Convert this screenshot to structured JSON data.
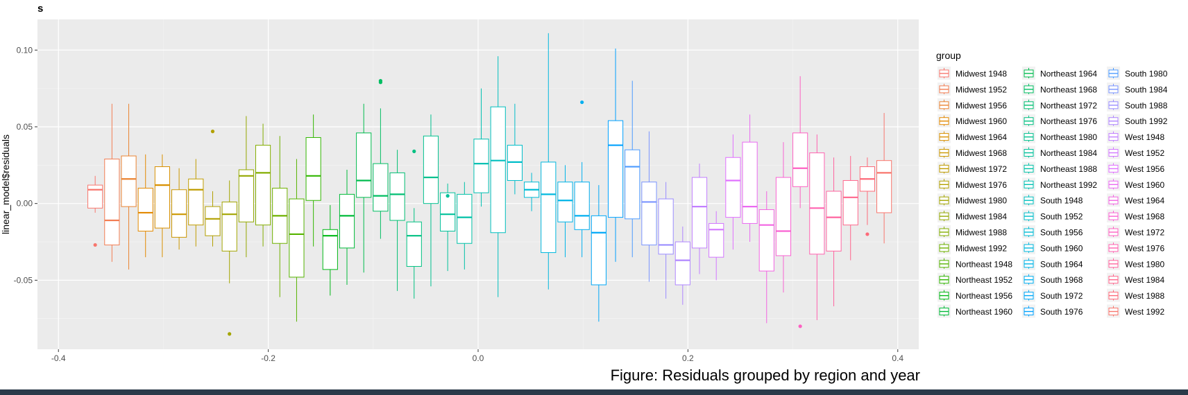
{
  "chart_data": {
    "type": "boxplot",
    "title": "s",
    "caption": "Figure: Residuals grouped by region and year",
    "xlabel": "",
    "ylabel": "linear_model$residuals",
    "xlim": [
      -0.42,
      0.42
    ],
    "ylim": [
      -0.095,
      0.12
    ],
    "x_ticks": [
      -0.4,
      -0.2,
      0.0,
      0.2,
      0.4
    ],
    "x_tick_labels": [
      "-0.4",
      "-0.2",
      "0.0",
      "0.2",
      "0.4"
    ],
    "y_ticks": [
      -0.05,
      0.0,
      0.05,
      0.1
    ],
    "y_tick_labels": [
      "-0.05",
      "0.00",
      "0.05",
      "0.10"
    ],
    "grid": true,
    "legend": {
      "title": "group",
      "placement": "right",
      "columns": 3
    },
    "groups": [
      {
        "name": "Midwest 1948",
        "color": "#F8766D",
        "x": -0.365,
        "w": 0.014,
        "q1": -0.003,
        "median": 0.009,
        "q3": 0.012,
        "lo": -0.006,
        "hi": 0.018,
        "outliers": [
          -0.027
        ]
      },
      {
        "name": "Midwest 1952",
        "color": "#F27D52",
        "x": -0.349,
        "w": 0.014,
        "q1": -0.027,
        "median": -0.011,
        "q3": 0.029,
        "lo": -0.038,
        "hi": 0.065,
        "outliers": []
      },
      {
        "name": "Midwest 1956",
        "color": "#EA8331",
        "x": -0.333,
        "w": 0.014,
        "q1": -0.002,
        "median": 0.016,
        "q3": 0.031,
        "lo": -0.043,
        "hi": 0.065,
        "outliers": []
      },
      {
        "name": "Midwest 1960",
        "color": "#E38900",
        "x": -0.317,
        "w": 0.014,
        "q1": -0.018,
        "median": -0.006,
        "q3": 0.01,
        "lo": -0.035,
        "hi": 0.032,
        "outliers": []
      },
      {
        "name": "Midwest 1964",
        "color": "#D89000",
        "x": -0.301,
        "w": 0.014,
        "q1": -0.016,
        "median": 0.012,
        "q3": 0.024,
        "lo": -0.035,
        "hi": 0.032,
        "outliers": []
      },
      {
        "name": "Midwest 1968",
        "color": "#CB9700",
        "x": -0.285,
        "w": 0.014,
        "q1": -0.022,
        "median": -0.007,
        "q3": 0.009,
        "lo": -0.03,
        "hi": 0.023,
        "outliers": []
      },
      {
        "name": "Midwest 1972",
        "color": "#BF9C00",
        "x": -0.269,
        "w": 0.014,
        "q1": -0.014,
        "median": 0.009,
        "q3": 0.016,
        "lo": -0.028,
        "hi": 0.029,
        "outliers": []
      },
      {
        "name": "Midwest 1976",
        "color": "#B2A000",
        "x": -0.253,
        "w": 0.014,
        "q1": -0.021,
        "median": -0.01,
        "q3": -0.002,
        "lo": -0.028,
        "hi": 0.008,
        "outliers": [
          0.047
        ]
      },
      {
        "name": "Midwest 1980",
        "color": "#A3A500",
        "x": -0.237,
        "w": 0.014,
        "q1": -0.031,
        "median": -0.007,
        "q3": 0.001,
        "lo": -0.052,
        "hi": 0.015,
        "outliers": [
          -0.085
        ]
      },
      {
        "name": "Midwest 1984",
        "color": "#94A800",
        "x": -0.221,
        "w": 0.014,
        "q1": -0.012,
        "median": 0.018,
        "q3": 0.022,
        "lo": -0.035,
        "hi": 0.057,
        "outliers": []
      },
      {
        "name": "Midwest 1988",
        "color": "#83AD00",
        "x": -0.205,
        "w": 0.014,
        "q1": -0.014,
        "median": 0.02,
        "q3": 0.038,
        "lo": -0.028,
        "hi": 0.052,
        "outliers": []
      },
      {
        "name": "Midwest 1992",
        "color": "#6FB000",
        "x": -0.189,
        "w": 0.014,
        "q1": -0.026,
        "median": -0.008,
        "q3": 0.01,
        "lo": -0.061,
        "hi": 0.044,
        "outliers": []
      },
      {
        "name": "Northeast 1948",
        "color": "#56B300",
        "x": -0.173,
        "w": 0.014,
        "q1": -0.048,
        "median": -0.02,
        "q3": 0.003,
        "lo": -0.077,
        "hi": 0.029,
        "outliers": []
      },
      {
        "name": "Northeast 1952",
        "color": "#31B600",
        "x": -0.157,
        "w": 0.014,
        "q1": 0.002,
        "median": 0.018,
        "q3": 0.043,
        "lo": -0.028,
        "hi": 0.058,
        "outliers": []
      },
      {
        "name": "Northeast 1956",
        "color": "#00B815",
        "x": -0.141,
        "w": 0.014,
        "q1": -0.043,
        "median": -0.021,
        "q3": -0.017,
        "lo": -0.06,
        "hi": -0.001,
        "outliers": []
      },
      {
        "name": "Northeast 1960",
        "color": "#00BA38",
        "x": -0.125,
        "w": 0.014,
        "q1": -0.029,
        "median": -0.008,
        "q3": 0.006,
        "lo": -0.053,
        "hi": 0.022,
        "outliers": []
      },
      {
        "name": "Northeast 1964",
        "color": "#00BB4E",
        "x": -0.109,
        "w": 0.014,
        "q1": 0.004,
        "median": 0.015,
        "q3": 0.046,
        "lo": -0.045,
        "hi": 0.065,
        "outliers": []
      },
      {
        "name": "Northeast 1968",
        "color": "#00BD61",
        "x": -0.093,
        "w": 0.014,
        "q1": -0.005,
        "median": 0.005,
        "q3": 0.026,
        "lo": -0.023,
        "hi": 0.062,
        "outliers": [
          0.08,
          0.079
        ]
      },
      {
        "name": "Northeast 1972",
        "color": "#00BE72",
        "x": -0.077,
        "w": 0.014,
        "q1": -0.011,
        "median": 0.006,
        "q3": 0.02,
        "lo": -0.057,
        "hi": 0.035,
        "outliers": []
      },
      {
        "name": "Northeast 1976",
        "color": "#00C081",
        "x": -0.061,
        "w": 0.014,
        "q1": -0.041,
        "median": -0.021,
        "q3": -0.012,
        "lo": -0.062,
        "hi": -0.003,
        "outliers": [
          0.034
        ]
      },
      {
        "name": "Northeast 1980",
        "color": "#00C08E",
        "x": -0.045,
        "w": 0.014,
        "q1": 0.0,
        "median": 0.017,
        "q3": 0.044,
        "lo": -0.054,
        "hi": 0.058,
        "outliers": []
      },
      {
        "name": "Northeast 1984",
        "color": "#00C19A",
        "x": -0.029,
        "w": 0.014,
        "q1": -0.018,
        "median": -0.007,
        "q3": 0.007,
        "lo": -0.044,
        "hi": 0.013,
        "outliers": [
          0.005
        ]
      },
      {
        "name": "Northeast 1988",
        "color": "#00C1A7",
        "x": -0.013,
        "w": 0.014,
        "q1": -0.026,
        "median": -0.009,
        "q3": 0.006,
        "lo": -0.043,
        "hi": 0.014,
        "outliers": []
      },
      {
        "name": "Northeast 1992",
        "color": "#00C0B2",
        "x": 0.003,
        "w": 0.014,
        "q1": 0.007,
        "median": 0.026,
        "q3": 0.042,
        "lo": -0.002,
        "hi": 0.075,
        "outliers": []
      },
      {
        "name": "South 1948",
        "color": "#00BFBE",
        "x": 0.019,
        "w": 0.014,
        "q1": -0.019,
        "median": 0.028,
        "q3": 0.063,
        "lo": -0.061,
        "hi": 0.096,
        "outliers": []
      },
      {
        "name": "South 1952",
        "color": "#00BDC9",
        "x": 0.035,
        "w": 0.014,
        "q1": 0.015,
        "median": 0.027,
        "q3": 0.038,
        "lo": 0.006,
        "hi": 0.065,
        "outliers": []
      },
      {
        "name": "South 1956",
        "color": "#00BBD4",
        "x": 0.051,
        "w": 0.014,
        "q1": 0.004,
        "median": 0.009,
        "q3": 0.014,
        "lo": -0.005,
        "hi": 0.02,
        "outliers": []
      },
      {
        "name": "South 1960",
        "color": "#00B8DE",
        "x": 0.067,
        "w": 0.014,
        "q1": -0.032,
        "median": 0.006,
        "q3": 0.027,
        "lo": -0.056,
        "hi": 0.111,
        "outliers": []
      },
      {
        "name": "South 1964",
        "color": "#00B4E7",
        "x": 0.083,
        "w": 0.014,
        "q1": -0.012,
        "median": 0.002,
        "q3": 0.014,
        "lo": -0.035,
        "hi": 0.025,
        "outliers": []
      },
      {
        "name": "South 1968",
        "color": "#00AFF0",
        "x": 0.099,
        "w": 0.014,
        "q1": -0.017,
        "median": -0.008,
        "q3": 0.014,
        "lo": -0.035,
        "hi": 0.027,
        "outliers": [
          0.066
        ]
      },
      {
        "name": "South 1972",
        "color": "#00A8F7",
        "x": 0.115,
        "w": 0.014,
        "q1": -0.053,
        "median": -0.019,
        "q3": -0.008,
        "lo": -0.077,
        "hi": 0.012,
        "outliers": []
      },
      {
        "name": "South 1976",
        "color": "#00A0FD",
        "x": 0.131,
        "w": 0.014,
        "q1": -0.009,
        "median": 0.038,
        "q3": 0.054,
        "lo": -0.038,
        "hi": 0.101,
        "outliers": []
      },
      {
        "name": "South 1980",
        "color": "#4C9BFF",
        "x": 0.147,
        "w": 0.014,
        "q1": -0.01,
        "median": 0.024,
        "q3": 0.035,
        "lo": -0.035,
        "hi": 0.08,
        "outliers": []
      },
      {
        "name": "South 1984",
        "color": "#7A94FF",
        "x": 0.163,
        "w": 0.014,
        "q1": -0.027,
        "median": 0.001,
        "q3": 0.014,
        "lo": -0.051,
        "hi": 0.047,
        "outliers": []
      },
      {
        "name": "South 1988",
        "color": "#9A8DFF",
        "x": 0.179,
        "w": 0.014,
        "q1": -0.033,
        "median": -0.027,
        "q3": 0.003,
        "lo": -0.062,
        "hi": 0.014,
        "outliers": []
      },
      {
        "name": "South 1992",
        "color": "#B086FF",
        "x": 0.195,
        "w": 0.014,
        "q1": -0.053,
        "median": -0.037,
        "q3": -0.025,
        "lo": -0.066,
        "hi": -0.015,
        "outliers": []
      },
      {
        "name": "West 1948",
        "color": "#C27FFF",
        "x": 0.211,
        "w": 0.014,
        "q1": -0.029,
        "median": -0.002,
        "q3": 0.017,
        "lo": -0.046,
        "hi": 0.026,
        "outliers": []
      },
      {
        "name": "West 1952",
        "color": "#D277FF",
        "x": 0.227,
        "w": 0.014,
        "q1": -0.035,
        "median": -0.017,
        "q3": -0.013,
        "lo": -0.05,
        "hi": -0.005,
        "outliers": []
      },
      {
        "name": "West 1956",
        "color": "#E070FF",
        "x": 0.243,
        "w": 0.014,
        "q1": -0.009,
        "median": 0.015,
        "q3": 0.03,
        "lo": -0.03,
        "hi": 0.045,
        "outliers": []
      },
      {
        "name": "West 1960",
        "color": "#EA6AF1",
        "x": 0.259,
        "w": 0.014,
        "q1": -0.013,
        "median": -0.002,
        "q3": 0.04,
        "lo": -0.025,
        "hi": 0.058,
        "outliers": []
      },
      {
        "name": "West 1964",
        "color": "#F264E2",
        "x": 0.275,
        "w": 0.014,
        "q1": -0.044,
        "median": -0.014,
        "q3": -0.004,
        "lo": -0.078,
        "hi": 0.008,
        "outliers": []
      },
      {
        "name": "West 1968",
        "color": "#F962D2",
        "x": 0.291,
        "w": 0.014,
        "q1": -0.034,
        "median": -0.018,
        "q3": 0.017,
        "lo": -0.058,
        "hi": 0.04,
        "outliers": []
      },
      {
        "name": "West 1972",
        "color": "#FD61C2",
        "x": 0.307,
        "w": 0.014,
        "q1": 0.011,
        "median": 0.023,
        "q3": 0.046,
        "lo": -0.003,
        "hi": 0.083,
        "outliers": [
          -0.08
        ]
      },
      {
        "name": "West 1976",
        "color": "#FF62B0",
        "x": 0.323,
        "w": 0.014,
        "q1": -0.033,
        "median": -0.003,
        "q3": 0.033,
        "lo": -0.076,
        "hi": 0.045,
        "outliers": []
      },
      {
        "name": "West 1980",
        "color": "#FF649F",
        "x": 0.339,
        "w": 0.014,
        "q1": -0.031,
        "median": -0.009,
        "q3": 0.008,
        "lo": -0.067,
        "hi": 0.03,
        "outliers": []
      },
      {
        "name": "West 1984",
        "color": "#FF668C",
        "x": 0.355,
        "w": 0.014,
        "q1": -0.014,
        "median": 0.004,
        "q3": 0.015,
        "lo": -0.037,
        "hi": 0.031,
        "outliers": []
      },
      {
        "name": "West 1988",
        "color": "#FD6A79",
        "x": 0.371,
        "w": 0.014,
        "q1": 0.008,
        "median": 0.016,
        "q3": 0.024,
        "lo": -0.014,
        "hi": 0.03,
        "outliers": [
          -0.02
        ]
      },
      {
        "name": "West 1992",
        "color": "#F8766D",
        "x": 0.387,
        "w": 0.014,
        "q1": -0.006,
        "median": 0.02,
        "q3": 0.028,
        "lo": -0.026,
        "hi": 0.059,
        "outliers": []
      }
    ]
  }
}
